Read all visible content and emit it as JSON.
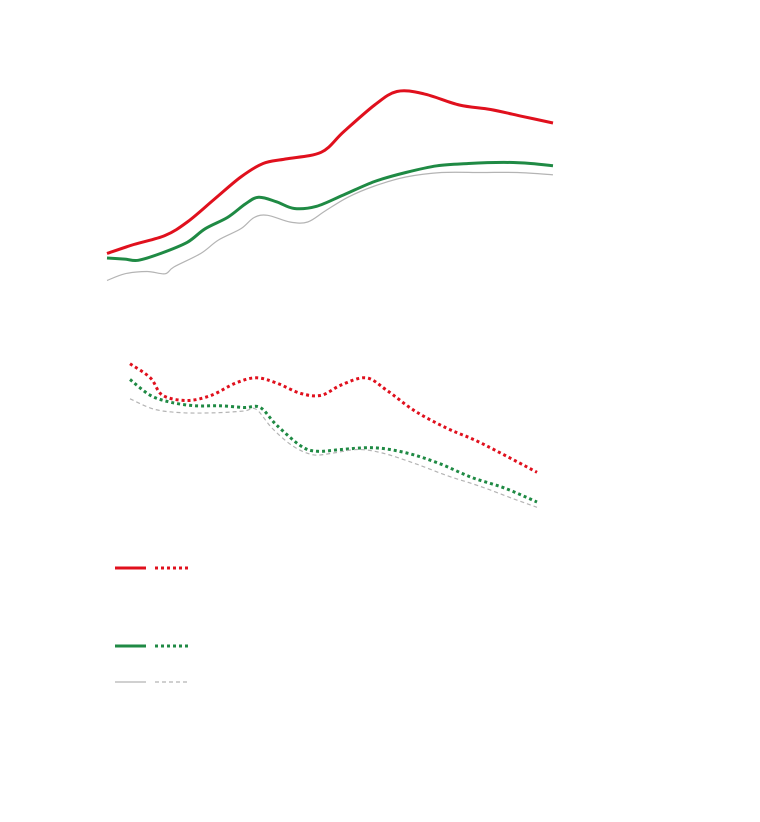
{
  "chart_data": {
    "type": "line",
    "title": "",
    "xlabel": "",
    "ylabel": "",
    "grid": false,
    "legend_position": "bottom-left",
    "colors": {
      "red": "#e0101d",
      "green": "#1f8a44",
      "gray": "#b4b4b4"
    },
    "panels": [
      {
        "name": "upper",
        "xlim": [
          0,
          100
        ],
        "ylim": [
          0,
          100
        ],
        "series": [
          {
            "color_key": "red",
            "style": "solid",
            "width": 3,
            "points": [
              [
                0,
                14
              ],
              [
                6,
                18
              ],
              [
                13,
                22
              ],
              [
                18,
                28
              ],
              [
                24,
                38
              ],
              [
                30,
                48
              ],
              [
                35,
                54
              ],
              [
                40,
                56
              ],
              [
                48,
                59
              ],
              [
                53,
                68
              ],
              [
                60,
                80
              ],
              [
                65,
                86
              ],
              [
                71,
                85
              ],
              [
                79,
                80
              ],
              [
                86,
                78
              ],
              [
                93,
                75
              ],
              [
                100,
                72
              ]
            ]
          },
          {
            "color_key": "green",
            "style": "solid",
            "width": 3,
            "points": [
              [
                0,
                12
              ],
              [
                4,
                11.5
              ],
              [
                7,
                11
              ],
              [
                12,
                14
              ],
              [
                18,
                19
              ],
              [
                22,
                25
              ],
              [
                27,
                30
              ],
              [
                31,
                36
              ],
              [
                34,
                39
              ],
              [
                38,
                37
              ],
              [
                42,
                34
              ],
              [
                47,
                35
              ],
              [
                53,
                40
              ],
              [
                60,
                46
              ],
              [
                67,
                50
              ],
              [
                74,
                53
              ],
              [
                81,
                54
              ],
              [
                89,
                54.5
              ],
              [
                95,
                54
              ],
              [
                100,
                53
              ]
            ]
          },
          {
            "color_key": "gray",
            "style": "solid",
            "width": 1.2,
            "points": [
              [
                0,
                2
              ],
              [
                4,
                5
              ],
              [
                9,
                6
              ],
              [
                13,
                5
              ],
              [
                15,
                8
              ],
              [
                21,
                14
              ],
              [
                25,
                20
              ],
              [
                30,
                25
              ],
              [
                33,
                30
              ],
              [
                36,
                31
              ],
              [
                41,
                28
              ],
              [
                45,
                28
              ],
              [
                49,
                33
              ],
              [
                54,
                39
              ],
              [
                60,
                44
              ],
              [
                67,
                48
              ],
              [
                75,
                50
              ],
              [
                84,
                50
              ],
              [
                92,
                50
              ],
              [
                100,
                49
              ]
            ]
          }
        ]
      },
      {
        "name": "lower",
        "xlim": [
          0,
          100
        ],
        "ylim": [
          0,
          100
        ],
        "series": [
          {
            "color_key": "red",
            "style": "dotted",
            "width": 3,
            "points": [
              [
                0,
                95
              ],
              [
                5,
                87
              ],
              [
                8,
                77
              ],
              [
                14,
                74
              ],
              [
                20,
                77
              ],
              [
                26,
                84
              ],
              [
                31,
                87
              ],
              [
                36,
                84
              ],
              [
                42,
                78
              ],
              [
                47,
                77
              ],
              [
                52,
                83
              ],
              [
                58,
                87
              ],
              [
                63,
                80
              ],
              [
                70,
                68
              ],
              [
                78,
                58
              ],
              [
                86,
                50
              ],
              [
                100,
                33
              ]
            ]
          },
          {
            "color_key": "green",
            "style": "dotted",
            "width": 3,
            "points": [
              [
                0,
                86
              ],
              [
                5,
                77
              ],
              [
                10,
                73
              ],
              [
                16,
                71
              ],
              [
                22,
                71
              ],
              [
                28,
                70
              ],
              [
                32,
                70
              ],
              [
                36,
                60
              ],
              [
                42,
                48
              ],
              [
                46,
                45
              ],
              [
                52,
                46
              ],
              [
                60,
                47
              ],
              [
                68,
                44
              ],
              [
                76,
                38
              ],
              [
                84,
                30
              ],
              [
                92,
                24
              ],
              [
                100,
                16
              ]
            ]
          },
          {
            "color_key": "gray",
            "style": "dashed",
            "width": 1.2,
            "points": [
              [
                0,
                75
              ],
              [
                6,
                69
              ],
              [
                13,
                67
              ],
              [
                21,
                67
              ],
              [
                28,
                68
              ],
              [
                31,
                69
              ],
              [
                35,
                58
              ],
              [
                40,
                48
              ],
              [
                45,
                43
              ],
              [
                50,
                44
              ],
              [
                56,
                46
              ],
              [
                62,
                44
              ],
              [
                70,
                38
              ],
              [
                78,
                31
              ],
              [
                86,
                25
              ],
              [
                94,
                18
              ],
              [
                100,
                13
              ]
            ]
          }
        ]
      }
    ],
    "legend": [
      {
        "color_key": "red",
        "styles": [
          "solid",
          "dotted"
        ],
        "label": ""
      },
      {
        "color_key": "green",
        "styles": [
          "solid",
          "dotted"
        ],
        "label": ""
      },
      {
        "color_key": "gray",
        "styles": [
          "solid",
          "dashed"
        ],
        "label": ""
      }
    ]
  }
}
